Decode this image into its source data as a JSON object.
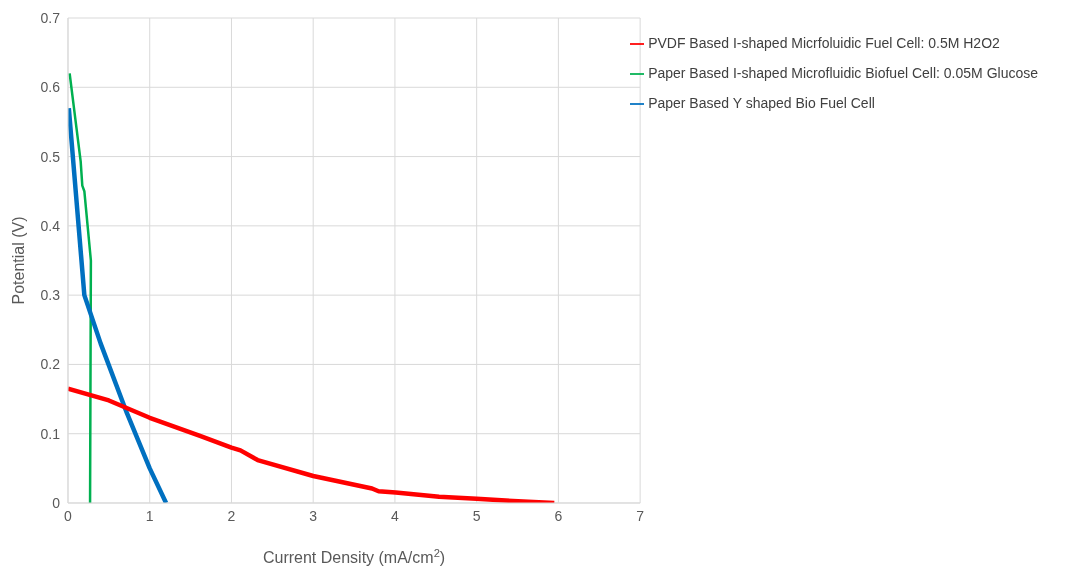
{
  "chart_data": {
    "type": "line",
    "xlabel": "Current Density (mA/cm$^{2}$)",
    "ylabel": "Potential (V)",
    "xlim": [
      0,
      7
    ],
    "xticks": [
      0,
      1,
      2,
      3,
      4,
      5,
      6,
      7
    ],
    "ylim": [
      0,
      0.7
    ],
    "yticks": [
      0,
      0.1,
      0.2,
      0.3,
      0.4,
      0.5,
      0.6,
      0.7
    ],
    "grid": true,
    "legend": "top right",
    "marker": "none",
    "line_style": "solid",
    "series": [
      {
        "name": "Paper Based I-shaped Microfluidic Biofuel Cell: 0.05M Glucose",
        "color": "#00b050",
        "x": [
          0.02,
          0.105,
          0.155,
          0.175,
          0.2,
          0.24,
          0.28,
          0.27
        ],
        "values": [
          0.62,
          0.54,
          0.493,
          0.458,
          0.45,
          0.4,
          0.35,
          0
        ]
      },
      {
        "name": "Paper Based Y shaped Bio Fuel Cell",
        "color": "#0070c0",
        "x": [
          0.01,
          0.2,
          0.4,
          0.72,
          1.0,
          1.2
        ],
        "values": [
          0.57,
          0.3,
          0.23,
          0.13,
          0.05,
          0
        ]
      },
      {
        "name": "PVDF Based I-shaped Micrfoluidic Fuel Cell: 0.5M H2O2",
        "color": "#ff0000",
        "x": [
          0,
          0.5,
          1,
          1.615,
          2.0,
          2.11,
          2.32,
          3.0,
          3.72,
          3.8,
          4.01,
          4.54,
          5.0,
          5.57,
          5.95
        ],
        "values": [
          0.165,
          0.148,
          0.123,
          0.097,
          0.08,
          0.076,
          0.062,
          0.039,
          0.021,
          0.017,
          0.015,
          0.009,
          0.006,
          0.002,
          0
        ]
      }
    ]
  }
}
